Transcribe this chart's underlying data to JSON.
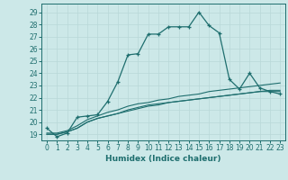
{
  "xlabel": "Humidex (Indice chaleur)",
  "background_color": "#cce8e8",
  "line_color": "#1e6e6e",
  "xlim": [
    -0.5,
    23.5
  ],
  "ylim": [
    18.5,
    29.7
  ],
  "xticks": [
    0,
    1,
    2,
    3,
    4,
    5,
    6,
    7,
    8,
    9,
    10,
    11,
    12,
    13,
    14,
    15,
    16,
    17,
    18,
    19,
    20,
    21,
    22,
    23
  ],
  "yticks": [
    19,
    20,
    21,
    22,
    23,
    24,
    25,
    26,
    27,
    28,
    29
  ],
  "series1_x": [
    0,
    1,
    2,
    3,
    4,
    5,
    6,
    7,
    8,
    9,
    10,
    11,
    12,
    13,
    14,
    15,
    16,
    17,
    18,
    19,
    20,
    21,
    22,
    23
  ],
  "series1_y": [
    19.5,
    18.8,
    19.1,
    20.4,
    20.5,
    20.6,
    21.7,
    23.3,
    25.5,
    25.6,
    27.2,
    27.2,
    27.8,
    27.8,
    27.8,
    29.0,
    27.9,
    27.3,
    23.5,
    22.7,
    24.0,
    22.8,
    22.5,
    22.3
  ],
  "series2_x": [
    0,
    1,
    2,
    3,
    4,
    5,
    6,
    7,
    8,
    9,
    10,
    11,
    12,
    13,
    14,
    15,
    16,
    17,
    18,
    19,
    20,
    21,
    22,
    23
  ],
  "series2_y": [
    19.1,
    19.1,
    19.3,
    19.7,
    20.2,
    20.5,
    20.8,
    21.0,
    21.3,
    21.5,
    21.6,
    21.8,
    21.9,
    22.1,
    22.2,
    22.3,
    22.5,
    22.6,
    22.7,
    22.8,
    22.9,
    23.0,
    23.1,
    23.2
  ],
  "series3_x": [
    0,
    1,
    2,
    3,
    4,
    5,
    6,
    7,
    8,
    9,
    10,
    11,
    12,
    13,
    14,
    15,
    16,
    17,
    18,
    19,
    20,
    21,
    22,
    23
  ],
  "series3_y": [
    19.0,
    19.0,
    19.2,
    19.5,
    20.0,
    20.3,
    20.5,
    20.7,
    20.9,
    21.1,
    21.3,
    21.4,
    21.6,
    21.7,
    21.8,
    21.9,
    22.0,
    22.1,
    22.2,
    22.3,
    22.4,
    22.5,
    22.6,
    22.6
  ],
  "series4_x": [
    0,
    1,
    2,
    3,
    4,
    5,
    6,
    7,
    8,
    9,
    10,
    11,
    12,
    13,
    14,
    15,
    16,
    17,
    18,
    19,
    20,
    21,
    22,
    23
  ],
  "series4_y": [
    19.0,
    19.0,
    19.2,
    19.5,
    20.0,
    20.3,
    20.5,
    20.7,
    21.0,
    21.2,
    21.4,
    21.5,
    21.6,
    21.7,
    21.8,
    21.9,
    22.0,
    22.1,
    22.2,
    22.3,
    22.4,
    22.5,
    22.5,
    22.5
  ]
}
